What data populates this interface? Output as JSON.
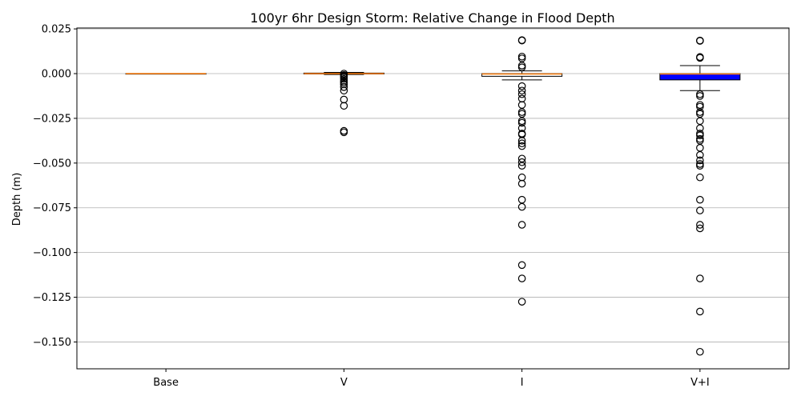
{
  "chart_data": {
    "type": "box",
    "title": "100yr 6hr Design Storm: Relative Change in Flood Depth",
    "xlabel": "",
    "ylabel": "Depth (m)",
    "ylim": [
      -0.165,
      0.0255
    ],
    "yticks": [
      0.025,
      0.0,
      -0.025,
      -0.05,
      -0.075,
      -0.1,
      -0.125,
      -0.15
    ],
    "ytick_labels": [
      "0.025",
      "0.000",
      "−0.025",
      "−0.050",
      "−0.075",
      "−0.100",
      "−0.125",
      "−0.150"
    ],
    "grid": "y",
    "categories": [
      "Base",
      "V",
      "I",
      "V+I"
    ],
    "boxes": [
      {
        "category": "Base",
        "whisker_low": 0.0,
        "q1": 0.0,
        "median": 0.0,
        "q3": 0.0,
        "whisker_high": 0.0,
        "fill": "#ffffff",
        "outliers": []
      },
      {
        "category": "V",
        "whisker_low": -0.0005,
        "q1": -0.0002,
        "median": 0.0,
        "q3": 0.0003,
        "whisker_high": 0.0007,
        "fill": "#ffffff",
        "outliers": [
          0.0,
          -0.0008,
          -0.0015,
          -0.002,
          -0.003,
          -0.004,
          -0.005,
          -0.006,
          -0.0075,
          -0.0095,
          -0.0145,
          -0.018,
          -0.032,
          -0.0328
        ]
      },
      {
        "category": "I",
        "whisker_low": -0.0035,
        "q1": -0.0015,
        "median": -0.0002,
        "q3": 0.0,
        "whisker_high": 0.0015,
        "fill": "#ffffff",
        "outliers": [
          0.0185,
          0.0187,
          0.0095,
          0.0085,
          0.0045,
          0.0035,
          -0.007,
          -0.0095,
          -0.0115,
          -0.014,
          -0.0175,
          -0.0215,
          -0.0225,
          -0.0265,
          -0.0275,
          -0.0305,
          -0.0335,
          -0.034,
          -0.0375,
          -0.039,
          -0.0405,
          -0.0475,
          -0.0495,
          -0.0515,
          -0.058,
          -0.0615,
          -0.0705,
          -0.0745,
          -0.0845,
          -0.107,
          -0.1145,
          -0.1275
        ]
      },
      {
        "category": "V+I",
        "whisker_low": -0.0095,
        "q1": -0.0035,
        "median": -0.0002,
        "q3": 0.0,
        "whisker_high": 0.0045,
        "fill": "#0000ff",
        "outliers": [
          0.0185,
          0.0183,
          0.0093,
          0.0088,
          -0.0115,
          -0.0125,
          -0.0175,
          -0.0185,
          -0.0215,
          -0.0225,
          -0.0265,
          -0.0305,
          -0.0335,
          -0.0345,
          -0.0365,
          -0.0375,
          -0.0415,
          -0.0455,
          -0.0485,
          -0.0505,
          -0.0515,
          -0.058,
          -0.0705,
          -0.0765,
          -0.0845,
          -0.0865,
          -0.1145,
          -0.133,
          -0.1555
        ]
      }
    ],
    "colors": {
      "median": "#ff7f0e",
      "grid": "#b0b0b0",
      "axis": "#000000",
      "outlier_edge": "#000000"
    }
  }
}
